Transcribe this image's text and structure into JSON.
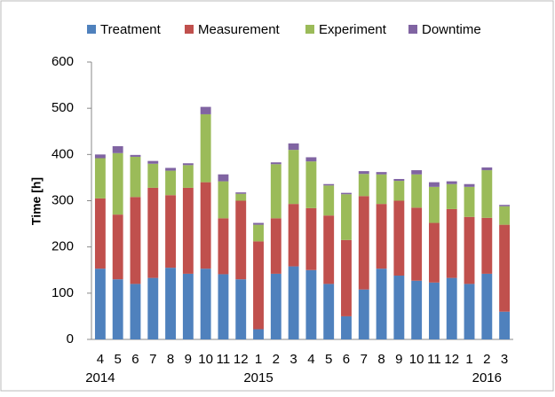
{
  "chart_data": {
    "type": "stacked-bar",
    "y_label": "Time [h]",
    "categories": [
      "4",
      "5",
      "6",
      "7",
      "8",
      "9",
      "10",
      "11",
      "12",
      "1",
      "2",
      "3",
      "4",
      "5",
      "6",
      "7",
      "8",
      "9",
      "10",
      "11",
      "12",
      "1",
      "2",
      "3"
    ],
    "category_groups": [
      "2014",
      null,
      null,
      null,
      null,
      null,
      null,
      null,
      null,
      "2015",
      null,
      null,
      null,
      null,
      null,
      null,
      null,
      null,
      null,
      null,
      null,
      null,
      "2016",
      null
    ],
    "series": [
      {
        "name": "Treatment",
        "color": "#4f81bd",
        "values": [
          153,
          130,
          120,
          133,
          155,
          142,
          153,
          141,
          130,
          22,
          142,
          158,
          150,
          120,
          50,
          108,
          153,
          138,
          127,
          123,
          133,
          120,
          142,
          60
        ]
      },
      {
        "name": "Measurement",
        "color": "#c0504d",
        "values": [
          152,
          140,
          188,
          195,
          157,
          186,
          187,
          121,
          170,
          190,
          120,
          135,
          134,
          148,
          165,
          202,
          140,
          162,
          158,
          129,
          149,
          145,
          121,
          188
        ]
      },
      {
        "name": "Experiment",
        "color": "#9bbb59",
        "values": [
          87,
          133,
          87,
          52,
          53,
          49,
          147,
          80,
          15,
          36,
          117,
          117,
          101,
          65,
          99,
          48,
          64,
          43,
          72,
          78,
          54,
          65,
          103,
          40
        ]
      },
      {
        "name": "Downtime",
        "color": "#8064a2",
        "values": [
          8,
          15,
          4,
          6,
          6,
          4,
          16,
          15,
          3,
          4,
          4,
          14,
          9,
          3,
          3,
          6,
          5,
          4,
          9,
          10,
          6,
          6,
          6,
          3
        ]
      }
    ],
    "ylim": [
      0,
      600
    ],
    "yticks": [
      0,
      100,
      200,
      300,
      400,
      500,
      600
    ],
    "grid": false
  }
}
